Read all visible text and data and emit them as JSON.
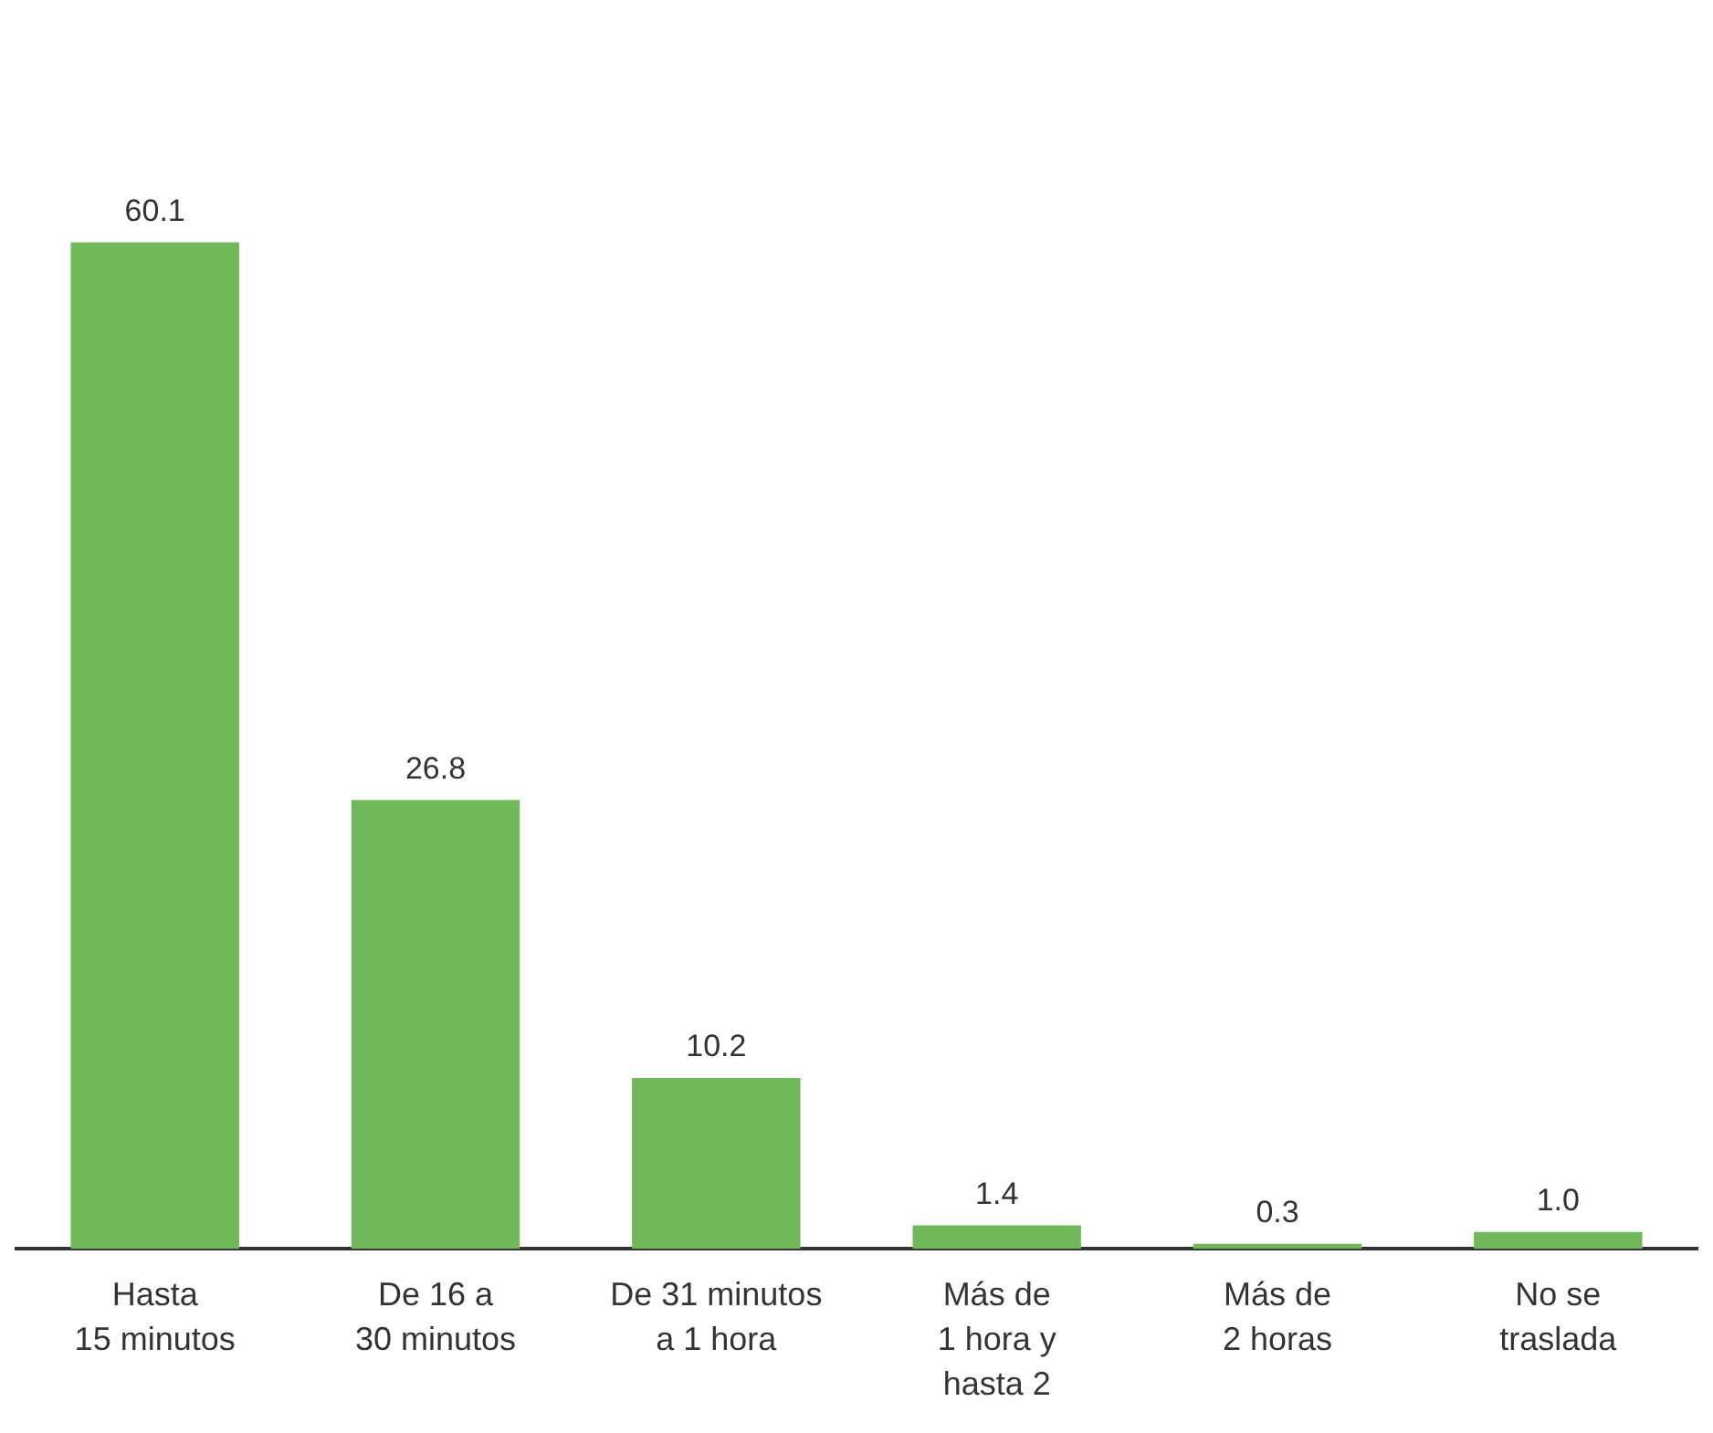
{
  "chart_data": {
    "type": "bar",
    "categories": [
      "Hasta\n15 minutos",
      "De 16 a\n30 minutos",
      "De 31 minutos\na 1 hora",
      "Más de\n1 hora y\nhasta 2",
      "Más de\n2 horas",
      "No se\ntraslada"
    ],
    "values": [
      60.1,
      26.8,
      10.2,
      1.4,
      0.3,
      1.0
    ],
    "value_labels": [
      "60.1",
      "26.8",
      "10.2",
      "1.4",
      "0.3",
      "1.0"
    ],
    "color": "#70b85a"
  }
}
